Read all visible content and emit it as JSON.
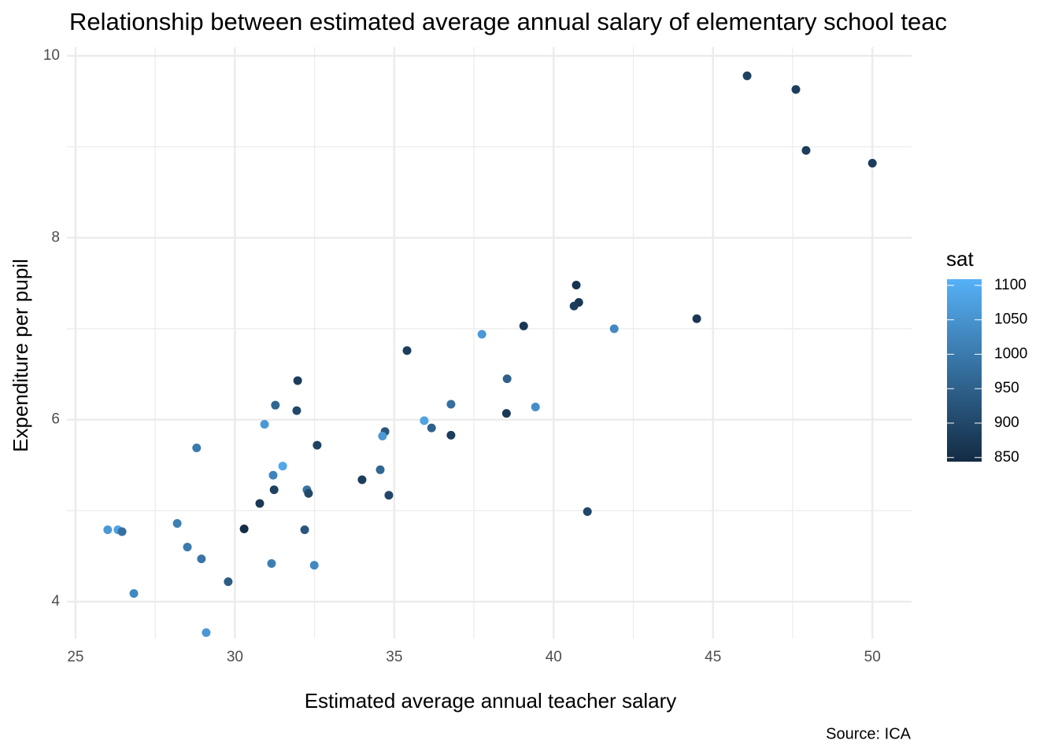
{
  "chart_data": {
    "type": "scatter",
    "title": "Relationship between estimated average annual salary of elementary school teac",
    "x_label": "Estimated average annual teacher salary",
    "y_label": "Expenditure per pupil",
    "caption": "Source: ICA",
    "xlim": [
      24.73,
      51.23
    ],
    "ylim": [
      3.594,
      10.095
    ],
    "xticks": [
      25,
      30,
      35,
      40,
      45,
      50
    ],
    "yticks": [
      4,
      6,
      8,
      10
    ],
    "x_minor_ticks": [
      27.5,
      32.5,
      37.5,
      42.5,
      47.5
    ],
    "y_minor_ticks": [
      5,
      7,
      9
    ],
    "grid": true,
    "color_title": "sat",
    "color_lim": [
      844,
      1109
    ],
    "color_ticks": [
      850,
      900,
      950,
      1000,
      1050,
      1100
    ],
    "color_low": "#132B43",
    "color_high": "#56B1F7",
    "x": [
      46.07,
      47.6,
      47.92,
      50.0,
      40.71,
      40.79,
      40.64,
      44.49,
      39.06,
      41.9,
      37.75,
      35.4,
      38.54,
      31.97,
      31.27,
      36.78,
      39.43,
      31.94,
      38.52,
      35.94,
      30.93,
      36.17,
      34.71,
      34.63,
      36.78,
      28.8,
      32.58,
      31.5,
      34.56,
      31.2,
      33.99,
      31.23,
      32.26,
      32.31,
      34.83,
      30.78,
      41.06,
      28.19,
      30.29,
      26.01,
      26.33,
      26.46,
      32.19,
      28.51,
      28.95,
      31.15,
      32.49,
      29.79,
      26.83,
      29.1
    ],
    "y": [
      9.78,
      9.63,
      8.96,
      8.82,
      7.48,
      7.29,
      7.25,
      7.11,
      7.03,
      7.0,
      6.94,
      6.76,
      6.45,
      6.43,
      6.16,
      6.17,
      6.14,
      6.1,
      6.07,
      5.99,
      5.95,
      5.91,
      5.87,
      5.82,
      5.83,
      5.69,
      5.72,
      5.49,
      5.45,
      5.39,
      5.34,
      5.23,
      5.23,
      5.19,
      5.17,
      5.08,
      4.99,
      4.86,
      4.8,
      4.79,
      4.79,
      4.77,
      4.79,
      4.6,
      4.47,
      4.42,
      4.4,
      4.22,
      4.09,
      3.66
    ],
    "color_values": [
      890,
      880,
      880,
      880,
      860,
      870,
      880,
      870,
      870,
      1030,
      1060,
      880,
      950,
      880,
      960,
      980,
      1040,
      900,
      870,
      1080,
      1060,
      950,
      930,
      1060,
      880,
      1000,
      890,
      1090,
      960,
      1020,
      880,
      890,
      990,
      900,
      900,
      870,
      900,
      1010,
      850,
      1060,
      1080,
      980,
      930,
      1000,
      990,
      1010,
      1030,
      940,
      1030,
      1060
    ]
  }
}
